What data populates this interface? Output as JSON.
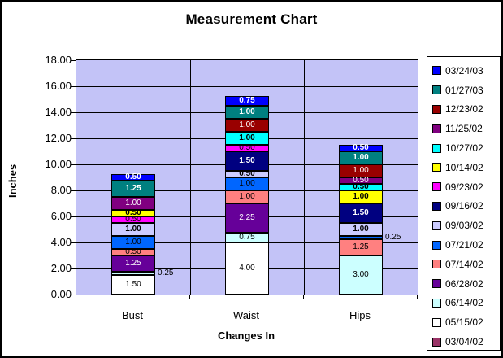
{
  "window": {
    "title": "Measurement Chart"
  },
  "chart_data": {
    "type": "bar",
    "stacked": true,
    "title": "Measurement Chart",
    "xlabel": "Changes In",
    "ylabel": "Inches",
    "categories": [
      "Bust",
      "Waist",
      "Hips"
    ],
    "ylim": [
      0,
      18
    ],
    "ytick_step": 2,
    "ytick_labels": [
      "0.00",
      "2.00",
      "4.00",
      "6.00",
      "8.00",
      "10.00",
      "12.00",
      "14.00",
      "16.00",
      "18.00"
    ],
    "grid": true,
    "legend_position": "right",
    "plot_bg_color": "#C3C3F7",
    "axis_color": "#000000",
    "series": [
      {
        "name": "03/04/02",
        "color": "#993366",
        "label_color": "#FFFFFF",
        "label_bold": false,
        "values": [
          0,
          0,
          0
        ]
      },
      {
        "name": "05/15/02",
        "color": "#FFFFFF",
        "label_color": "#000000",
        "label_bold": false,
        "values": [
          1.5,
          4,
          0
        ]
      },
      {
        "name": "06/14/02",
        "color": "#CCFFFF",
        "label_color": "#000000",
        "label_bold": false,
        "values": [
          0.25,
          0.75,
          3
        ]
      },
      {
        "name": "06/28/02",
        "color": "#660099",
        "label_color": "#FFFFFF",
        "label_bold": false,
        "values": [
          1.25,
          2.25,
          0
        ]
      },
      {
        "name": "07/14/02",
        "color": "#FF8080",
        "label_color": "#000000",
        "label_bold": false,
        "values": [
          0.5,
          1,
          1.25
        ]
      },
      {
        "name": "07/21/02",
        "color": "#0066FF",
        "label_color": "#000000",
        "label_bold": false,
        "values": [
          1,
          1,
          0.25
        ]
      },
      {
        "name": "09/03/02",
        "color": "#CCCCFF",
        "label_color": "#000000",
        "label_bold": true,
        "values": [
          1,
          0.5,
          1
        ]
      },
      {
        "name": "09/16/02",
        "color": "#000080",
        "label_color": "#FFFFFF",
        "label_bold": true,
        "values": [
          0,
          1.5,
          1.5
        ]
      },
      {
        "name": "09/23/02",
        "color": "#FF00FF",
        "label_color": "#000000",
        "label_bold": false,
        "values": [
          0.5,
          0.5,
          0
        ]
      },
      {
        "name": "10/14/02",
        "color": "#FFFF00",
        "label_color": "#000000",
        "label_bold": true,
        "values": [
          0.5,
          0,
          1
        ]
      },
      {
        "name": "10/27/02",
        "color": "#00FFFF",
        "label_color": "#000000",
        "label_bold": true,
        "values": [
          0,
          1,
          0.5
        ]
      },
      {
        "name": "11/25/02",
        "color": "#800080",
        "label_color": "#FFFFFF",
        "label_bold": false,
        "values": [
          1,
          0,
          0.5
        ]
      },
      {
        "name": "12/23/02",
        "color": "#990000",
        "label_color": "#FFFFFF",
        "label_bold": false,
        "values": [
          0,
          1,
          1
        ]
      },
      {
        "name": "01/27/03",
        "color": "#008080",
        "label_color": "#FFFFFF",
        "label_bold": true,
        "values": [
          1.25,
          1,
          1
        ]
      },
      {
        "name": "03/24/03",
        "color": "#0000FF",
        "label_color": "#FFFFFF",
        "label_bold": true,
        "values": [
          0.5,
          0.75,
          0.5
        ]
      }
    ],
    "outside_labels": [
      {
        "series": "06/14/02",
        "category": "Bust"
      },
      {
        "series": "07/21/02",
        "category": "Hips"
      }
    ]
  }
}
